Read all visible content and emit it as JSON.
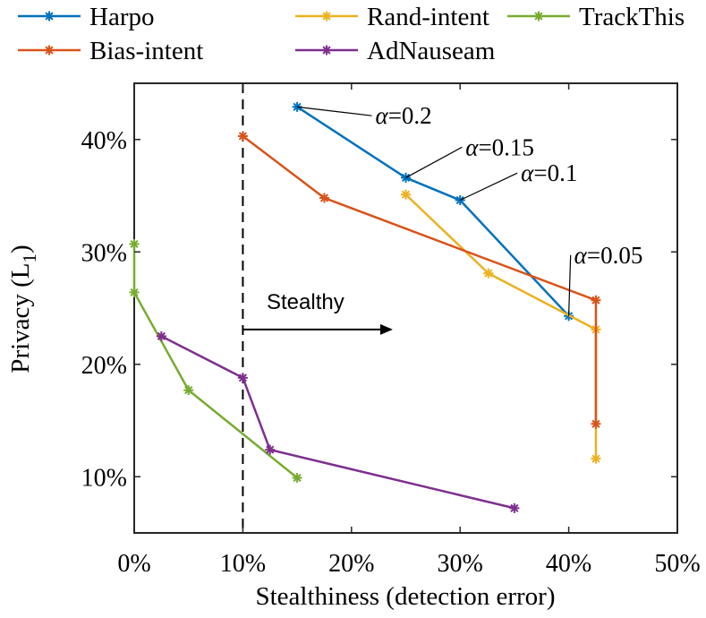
{
  "chart_data": {
    "type": "line",
    "xlabel": "Stealthiness (detection error)",
    "ylabel_main": "Privacy (L",
    "ylabel_sub": "1",
    "ylabel_end": ")",
    "xlim": [
      0,
      50
    ],
    "ylim": [
      5,
      45
    ],
    "x_ticks": [
      0,
      10,
      20,
      30,
      40,
      50
    ],
    "x_tick_labels": [
      "0%",
      "10%",
      "20%",
      "30%",
      "40%",
      "50%"
    ],
    "y_ticks": [
      10,
      20,
      30,
      40
    ],
    "y_tick_labels": [
      "10%",
      "20%",
      "30%",
      "40%"
    ],
    "grid": false,
    "legend_placement": "top, outside plot",
    "series": [
      {
        "name": "Harpo",
        "color": "#0072BD",
        "points": [
          [
            15,
            42.9
          ],
          [
            25,
            36.6
          ],
          [
            30,
            34.6
          ],
          [
            40,
            24.3
          ]
        ]
      },
      {
        "name": "Rand-intent",
        "color": "#EDB120",
        "points": [
          [
            25,
            35.1
          ],
          [
            32.6,
            28.1
          ],
          [
            42.5,
            23.1
          ],
          [
            42.5,
            11.6
          ]
        ]
      },
      {
        "name": "TrackThis",
        "color": "#77AC30",
        "points": [
          [
            0,
            30.7
          ],
          [
            0,
            26.4
          ],
          [
            5,
            17.7
          ],
          [
            15,
            9.9
          ]
        ]
      },
      {
        "name": "Bias-intent",
        "color": "#D95319",
        "points": [
          [
            10,
            40.3
          ],
          [
            17.5,
            34.8
          ],
          [
            42.5,
            25.7
          ],
          [
            42.5,
            14.7
          ]
        ]
      },
      {
        "name": "AdNauseam",
        "color": "#7E2F8E",
        "points": [
          [
            2.5,
            22.5
          ],
          [
            10,
            18.8
          ],
          [
            12.5,
            12.4
          ],
          [
            35,
            7.2
          ]
        ]
      }
    ],
    "legend_order": [
      "Harpo",
      "Rand-intent",
      "TrackThis",
      "Bias-intent",
      "AdNauseam"
    ],
    "threshold_line_x": 10,
    "stealthy_label": "Stealthy",
    "stealthy_arrow": {
      "from": [
        10,
        23.1
      ],
      "to": [
        23.8,
        23.1
      ]
    },
    "annotations": [
      {
        "symbol": "α",
        "text": "=0.2",
        "point": [
          15,
          42.9
        ],
        "label_at": [
          22.2,
          41.4
        ]
      },
      {
        "symbol": "α",
        "text": "=0.15",
        "point": [
          25,
          36.6
        ],
        "label_at": [
          30.5,
          38.6
        ]
      },
      {
        "symbol": "α",
        "text": "=0.1",
        "point": [
          30,
          34.6
        ],
        "label_at": [
          35.6,
          36.3
        ]
      },
      {
        "symbol": "α",
        "text": "=0.05",
        "point": [
          40,
          24.3
        ],
        "label_at": [
          40.5,
          29.0
        ]
      }
    ]
  }
}
